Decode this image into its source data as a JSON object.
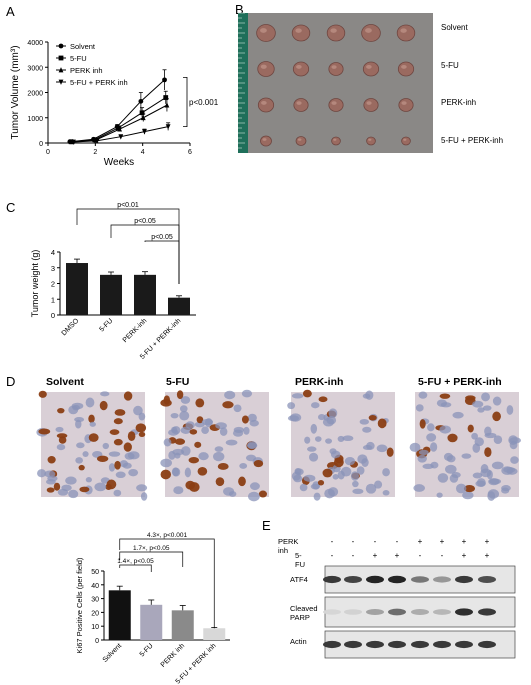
{
  "panels": {
    "A": {
      "letter": "A"
    },
    "B": {
      "letter": "B"
    },
    "C": {
      "letter": "C"
    },
    "D": {
      "letter": "D"
    },
    "E": {
      "letter": "E"
    }
  },
  "chart_data": [
    {
      "panel": "A",
      "type": "line",
      "xlabel": "Weeks",
      "ylabel": "Tumor Volume (mm³)",
      "xlim": [
        0,
        6
      ],
      "ylim": [
        0,
        4000
      ],
      "xticks": [
        "0",
        "2",
        "4",
        "6"
      ],
      "yticks": [
        "0",
        "1000",
        "2000",
        "3000",
        "4000"
      ],
      "legend_position": "top-left",
      "annotation": "p<0.001",
      "x": [
        1,
        2,
        3,
        4,
        5
      ],
      "series": [
        {
          "name": "Solvent",
          "marker": "circle",
          "values": [
            50,
            150,
            650,
            1650,
            2500
          ],
          "err": [
            20,
            40,
            80,
            350,
            400
          ]
        },
        {
          "name": "5-FU",
          "marker": "square",
          "values": [
            50,
            130,
            600,
            1200,
            1800
          ],
          "err": [
            20,
            40,
            70,
            200,
            250
          ]
        },
        {
          "name": "PERK inh",
          "marker": "triangle-up",
          "values": [
            50,
            120,
            550,
            1000,
            1500
          ],
          "err": [
            20,
            40,
            60,
            150,
            250
          ]
        },
        {
          "name": "5-FU + PERK inh",
          "marker": "triangle-down",
          "values": [
            40,
            90,
            250,
            450,
            650
          ],
          "err": [
            15,
            30,
            40,
            100,
            150
          ]
        }
      ]
    },
    {
      "panel": "C",
      "type": "bar",
      "ylabel": "Tumor weight (g)",
      "ylim": [
        0,
        4
      ],
      "yticks": [
        "0",
        "1",
        "2",
        "3",
        "4"
      ],
      "categories": [
        "DMSO",
        "5-FU",
        "PERK-inh",
        "5-FU + PERK-inh"
      ],
      "values": [
        3.3,
        2.55,
        2.55,
        1.1
      ],
      "err": [
        0.25,
        0.18,
        0.2,
        0.12
      ],
      "color": "#1a1a1a",
      "brackets": [
        {
          "from": 0,
          "to": 3,
          "label": "p<0.01"
        },
        {
          "from": 1,
          "to": 3,
          "label": "p<0.05"
        },
        {
          "from": 2,
          "to": 3,
          "label": "p<0.05"
        }
      ]
    },
    {
      "panel": "D",
      "type": "bar",
      "ylabel": "Ki67 Positive Cells (per field)",
      "ylim": [
        0,
        50
      ],
      "yticks": [
        "0",
        "10",
        "20",
        "30",
        "40",
        "50"
      ],
      "categories": [
        "Solvent",
        "5-FU",
        "PERK inh",
        "5-FU + PERK inh"
      ],
      "values": [
        36,
        25.5,
        21.5,
        8.5
      ],
      "err": [
        3,
        3.5,
        3.5,
        0.6
      ],
      "colors": [
        "#111111",
        "#a9a7bb",
        "#8a8a8a",
        "#d8d8d8"
      ],
      "brackets": [
        {
          "from": 0,
          "to": 3,
          "label": "4.3×, p<0.001"
        },
        {
          "from": 0,
          "to": 2,
          "label": "1.7×, p<0.05"
        },
        {
          "from": 0,
          "to": 1,
          "label": "1.4×, p<0.05"
        }
      ]
    }
  ],
  "tumor_photo": {
    "rows": [
      "Solvent",
      "5-FU",
      "PERK-inh",
      "5-FU + PERK-inh"
    ],
    "background": "#8a8886",
    "ruler_color": "#1f6f5a",
    "tumor_color": "#9a6a60"
  },
  "ihc": {
    "labels": [
      "Solvent",
      "5-FU",
      "PERK-inh",
      "5-FU + PERK-inh"
    ],
    "background": "#d9cfd6",
    "brown_cell": "#8b3e14",
    "blue_cell": "#8a93b8"
  },
  "western": {
    "header_rows": [
      {
        "label": "PERK inh",
        "signs": [
          "-",
          "-",
          "-",
          "-",
          "+",
          "+",
          "+",
          "+"
        ]
      },
      {
        "label": "5-FU",
        "signs": [
          "-",
          "-",
          "+",
          "+",
          "-",
          "-",
          "+",
          "+"
        ]
      }
    ],
    "blots": [
      {
        "label": "ATF4",
        "intensities": [
          0.85,
          0.8,
          0.95,
          0.95,
          0.55,
          0.4,
          0.85,
          0.75
        ]
      },
      {
        "label": "Cleaved PARP",
        "intensities": [
          0.1,
          0.12,
          0.35,
          0.6,
          0.3,
          0.25,
          0.9,
          0.85
        ]
      },
      {
        "label": "Actin",
        "intensities": [
          0.85,
          0.85,
          0.85,
          0.85,
          0.85,
          0.85,
          0.85,
          0.85
        ]
      }
    ]
  }
}
